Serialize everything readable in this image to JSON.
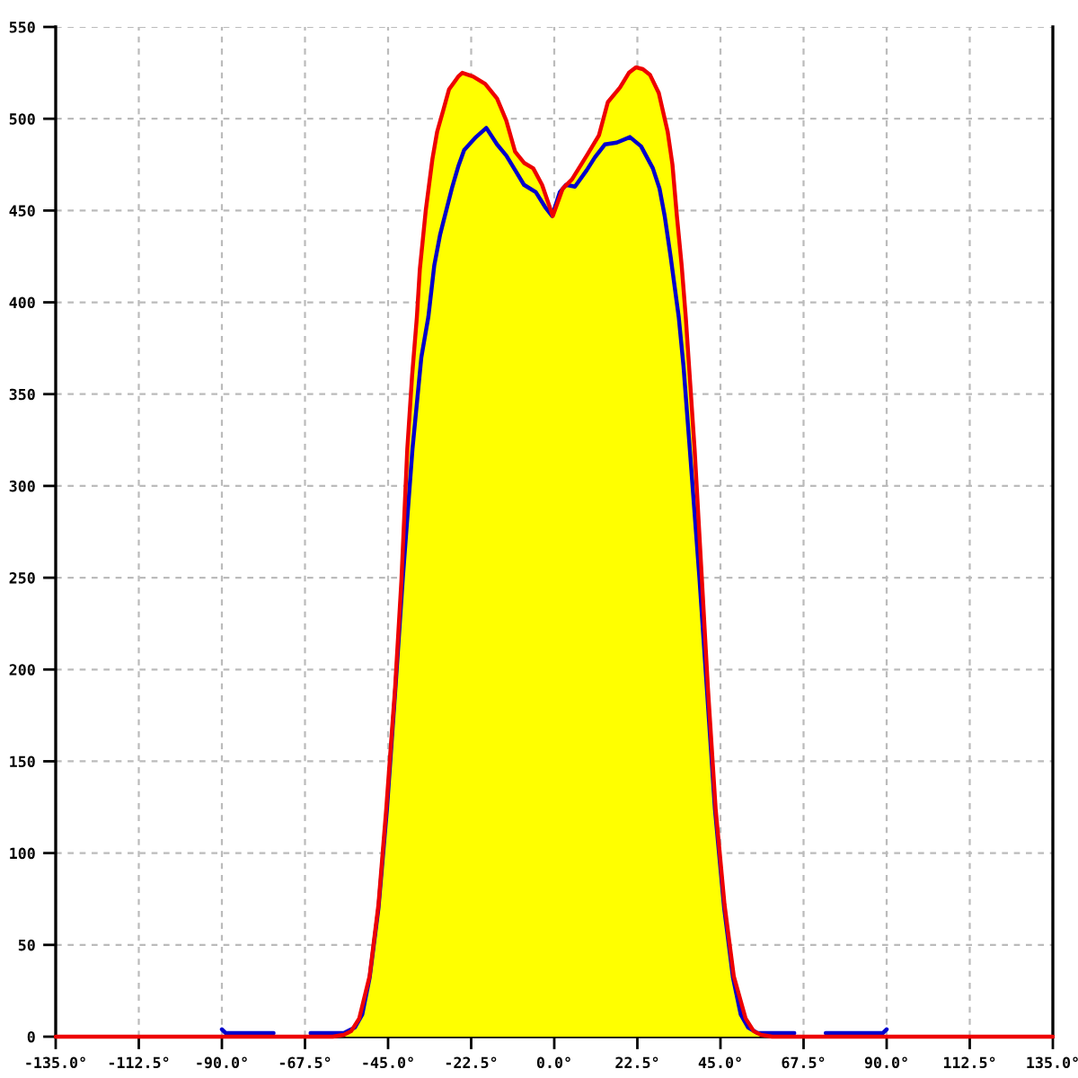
{
  "chart_data": {
    "type": "line",
    "xlim": [
      -135,
      135
    ],
    "ylim": [
      0,
      550
    ],
    "xticks": [
      {
        "value": -135,
        "label": "-135.0°"
      },
      {
        "value": -112.5,
        "label": "-112.5°"
      },
      {
        "value": -90,
        "label": "-90.0°"
      },
      {
        "value": -67.5,
        "label": "-67.5°"
      },
      {
        "value": -45,
        "label": "-45.0°"
      },
      {
        "value": -22.5,
        "label": "-22.5°"
      },
      {
        "value": 0,
        "label": "0.0°"
      },
      {
        "value": 22.5,
        "label": "22.5°"
      },
      {
        "value": 45,
        "label": "45.0°"
      },
      {
        "value": 67.5,
        "label": "67.5°"
      },
      {
        "value": 90,
        "label": "90.0°"
      },
      {
        "value": 112.5,
        "label": "112.5°"
      },
      {
        "value": 135,
        "label": "135.0°"
      }
    ],
    "yticks": [
      0,
      50,
      100,
      150,
      200,
      250,
      300,
      350,
      400,
      450,
      500,
      550
    ],
    "grid": true,
    "series": [
      {
        "type": "area",
        "color": "#ffff00",
        "x": [
          -60,
          -57,
          -55,
          -52.8,
          -50,
          -47.6,
          -45.5,
          -43.1,
          -41.4,
          -39.8,
          -38.5,
          -37.2,
          -36.4,
          -34.8,
          -33,
          -31.7,
          -30,
          -28.5,
          -26,
          -24.9,
          -22,
          -18.7,
          -15.5,
          -13,
          -10.6,
          -8.2,
          -5.7,
          -3.3,
          -0.4,
          2.3,
          4.8,
          8.8,
          12.1,
          14.5,
          17.8,
          20.2,
          22.1,
          24,
          25.9,
          28.3,
          30.7,
          32,
          33.2,
          34.5,
          35.6,
          38,
          40,
          41.6,
          43.7,
          46.1,
          48.6,
          51.8,
          54,
          56,
          59
        ],
        "values": [
          0,
          1,
          3,
          10,
          33,
          72,
          124,
          190,
          248,
          320,
          360,
          392,
          418,
          450,
          478,
          493,
          505,
          516,
          523,
          525,
          523,
          519,
          511,
          499,
          482,
          476,
          473,
          464,
          447,
          462,
          467,
          480,
          491,
          509,
          517,
          525,
          528,
          527,
          524,
          514,
          493,
          475,
          447,
          420,
          392,
          320,
          248,
          190,
          124,
          72,
          33,
          10,
          3,
          1,
          0
        ]
      },
      {
        "color": "#0000cc",
        "x": [
          -90,
          -89,
          -76,
          -75,
          -66,
          -57,
          -54,
          -52,
          -50,
          -47.6,
          -45.3,
          -43,
          -41,
          -38.4,
          -36,
          -34.1,
          -32.5,
          -30.9,
          -29,
          -27.6,
          -26,
          -24.4,
          -21.2,
          -18.4,
          -15.5,
          -13,
          -10.6,
          -8.2,
          -5,
          -2.5,
          -0.6,
          1.5,
          3.2,
          5.6,
          8.8,
          11,
          13.7,
          16.9,
          20.5,
          23.5,
          26.7,
          28.5,
          29.9,
          31.5,
          33.7,
          35,
          36.7,
          39.3,
          41.3,
          43.5,
          46,
          48.4,
          50.5,
          52.5,
          55,
          65,
          70,
          73.5,
          89,
          90
        ],
        "values": [
          4,
          2,
          2,
          null,
          2,
          2,
          5,
          12,
          32,
          70,
          124,
          190,
          250,
          320,
          370,
          392,
          420,
          437,
          452,
          463,
          474,
          483,
          490,
          495,
          486,
          480,
          472,
          464,
          460,
          452,
          447,
          460,
          464,
          463,
          472,
          479,
          486,
          487,
          490,
          485,
          473,
          462,
          447,
          425,
          392,
          365,
          320,
          250,
          190,
          124,
          70,
          32,
          12,
          5,
          2,
          2,
          null,
          2,
          2,
          4
        ]
      },
      {
        "color": "#ee0000",
        "x": [
          -135,
          -60,
          -57,
          -55,
          -52.8,
          -50,
          -47.6,
          -45.5,
          -43.1,
          -41.4,
          -39.8,
          -38.5,
          -37.2,
          -36.4,
          -34.8,
          -33,
          -31.7,
          -30,
          -28.5,
          -26,
          -24.9,
          -22,
          -18.7,
          -15.5,
          -13,
          -10.6,
          -8.2,
          -5.7,
          -3.3,
          -0.4,
          2.3,
          4.8,
          8.8,
          12.1,
          14.5,
          17.8,
          20.2,
          22.1,
          24,
          25.9,
          28.3,
          30.7,
          32,
          33.2,
          34.5,
          35.6,
          38,
          40,
          41.6,
          43.7,
          46.1,
          48.6,
          51.8,
          54,
          56,
          59,
          135
        ],
        "values": [
          0,
          0,
          1,
          3,
          10,
          33,
          72,
          124,
          190,
          248,
          320,
          360,
          392,
          418,
          450,
          478,
          493,
          505,
          516,
          523,
          525,
          523,
          519,
          511,
          499,
          482,
          476,
          473,
          464,
          447,
          462,
          467,
          480,
          491,
          509,
          517,
          525,
          528,
          527,
          524,
          514,
          493,
          475,
          447,
          420,
          392,
          320,
          248,
          190,
          124,
          72,
          33,
          10,
          3,
          1,
          0,
          0
        ]
      }
    ]
  }
}
